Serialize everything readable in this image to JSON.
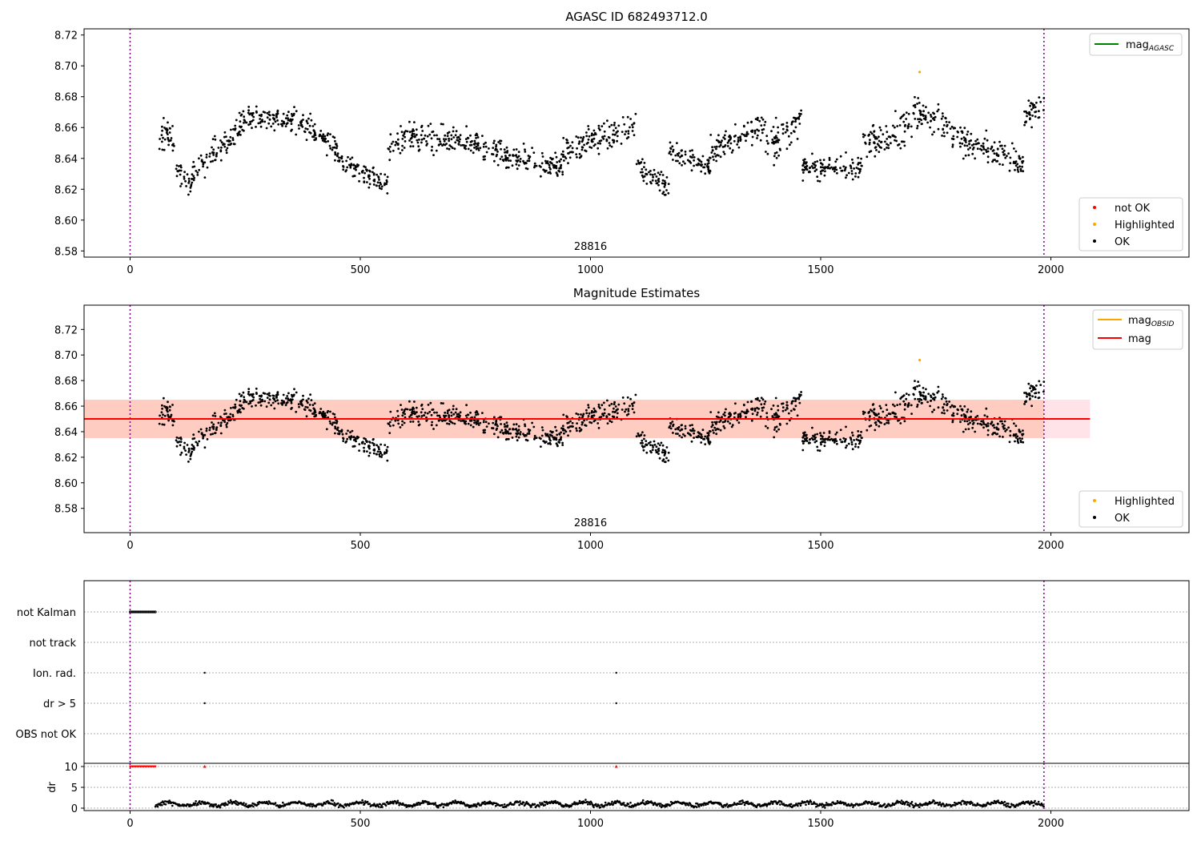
{
  "chart_data": [
    {
      "type": "scatter",
      "title": "AGASC ID 682493712.0",
      "xlim": [
        -100,
        2300
      ],
      "ylim": [
        8.576,
        8.724
      ],
      "x_ticks": [
        0,
        500,
        1000,
        1500,
        2000
      ],
      "y_ticks": [
        8.58,
        8.6,
        8.62,
        8.64,
        8.66,
        8.68,
        8.7,
        8.72
      ],
      "vlines": [
        0,
        1985
      ],
      "annotation": "28816",
      "legend_lines": [
        {
          "name": "mag",
          "sub": "AGASC",
          "color": "#008000"
        }
      ],
      "legend_points": [
        {
          "name": "not OK",
          "color": "#ff0000"
        },
        {
          "name": "Highlighted",
          "color": "#ffa500"
        },
        {
          "name": "OK",
          "color": "#000000"
        }
      ],
      "highlighted": [
        {
          "x": 1715,
          "y": 8.696
        }
      ],
      "ok_segments": [
        {
          "x": [
            60,
            100
          ],
          "y": [
            8.654,
            8.654
          ],
          "spread": 0.012
        },
        {
          "x": [
            100,
            135
          ],
          "y": [
            8.63,
            8.624
          ],
          "spread": 0.009
        },
        {
          "x": [
            135,
            240
          ],
          "y": [
            8.63,
            8.66
          ],
          "spread": 0.01
        },
        {
          "x": [
            240,
            360
          ],
          "y": [
            8.666,
            8.666
          ],
          "spread": 0.008
        },
        {
          "x": [
            360,
            450
          ],
          "y": [
            8.664,
            8.648
          ],
          "spread": 0.009
        },
        {
          "x": [
            450,
            560
          ],
          "y": [
            8.64,
            8.622
          ],
          "spread": 0.008
        },
        {
          "x": [
            560,
            620
          ],
          "y": [
            8.645,
            8.658
          ],
          "spread": 0.01
        },
        {
          "x": [
            620,
            760
          ],
          "y": [
            8.652,
            8.65
          ],
          "spread": 0.01
        },
        {
          "x": [
            760,
            940
          ],
          "y": [
            8.645,
            8.635
          ],
          "spread": 0.009
        },
        {
          "x": [
            940,
            1100
          ],
          "y": [
            8.645,
            8.662
          ],
          "spread": 0.01
        },
        {
          "x": [
            1100,
            1170
          ],
          "y": [
            8.636,
            8.62
          ],
          "spread": 0.01
        },
        {
          "x": [
            1170,
            1260
          ],
          "y": [
            8.645,
            8.635
          ],
          "spread": 0.008
        },
        {
          "x": [
            1260,
            1380
          ],
          "y": [
            8.645,
            8.662
          ],
          "spread": 0.01
        },
        {
          "x": [
            1380,
            1460
          ],
          "y": [
            8.645,
            8.665
          ],
          "spread": 0.012
        },
        {
          "x": [
            1460,
            1590
          ],
          "y": [
            8.634,
            8.634
          ],
          "spread": 0.008
        },
        {
          "x": [
            1590,
            1700
          ],
          "y": [
            8.65,
            8.662
          ],
          "spread": 0.012
        },
        {
          "x": [
            1700,
            1780
          ],
          "y": [
            8.67,
            8.662
          ],
          "spread": 0.012
        },
        {
          "x": [
            1780,
            1940
          ],
          "y": [
            8.655,
            8.636
          ],
          "spread": 0.01
        },
        {
          "x": [
            1940,
            1985
          ],
          "y": [
            8.665,
            8.675
          ],
          "spread": 0.01
        }
      ]
    },
    {
      "type": "scatter",
      "title": "Magnitude Estimates",
      "xlim": [
        -100,
        2300
      ],
      "ylim": [
        8.561,
        8.739
      ],
      "x_ticks": [
        0,
        500,
        1000,
        1500,
        2000
      ],
      "y_ticks": [
        8.58,
        8.6,
        8.62,
        8.64,
        8.66,
        8.68,
        8.7,
        8.72
      ],
      "vlines": [
        0,
        1985
      ],
      "annotation": "28816",
      "mag_line": {
        "value": 8.65,
        "x": [
          -100,
          2085
        ],
        "color": "#ff0000"
      },
      "band_outer": {
        "y": [
          8.635,
          8.665
        ],
        "x": [
          -100,
          2085
        ],
        "color": "#ffc0cb"
      },
      "band_inner": {
        "y": [
          8.635,
          8.665
        ],
        "x": [
          -100,
          1985
        ],
        "color": "#ffa07a"
      },
      "legend_lines": [
        {
          "name": "mag",
          "sub": "OBSID",
          "color": "#ffa500"
        },
        {
          "name": "mag",
          "sub": "",
          "color": "#ff0000"
        }
      ],
      "legend_points": [
        {
          "name": "Highlighted",
          "color": "#ffa500"
        },
        {
          "name": "OK",
          "color": "#000000"
        }
      ]
    },
    {
      "type": "scatter",
      "xlim": [
        -100,
        2300
      ],
      "flags": [
        "not Kalman",
        "not track",
        "Ion. rad.",
        "dr > 5",
        "OBS not OK"
      ],
      "flag_points": {
        "not Kalman": {
          "x_range": [
            0,
            55
          ]
        },
        "not track": {
          "x_range": []
        },
        "Ion. rad.": {
          "x": [
            162,
            1056
          ]
        },
        "dr > 5": {
          "x": [
            162,
            1056
          ]
        },
        "OBS not OK": {
          "x": []
        }
      },
      "vlines": [
        0,
        1985
      ],
      "dr": {
        "ylabel": "dr",
        "y_ticks": [
          0,
          5,
          10
        ],
        "x_ticks": [
          0,
          500,
          1000,
          1500,
          2000
        ],
        "capped_value": 10,
        "capped_x_range": [
          0,
          55
        ],
        "capped_x_extra": [
          162,
          1056
        ],
        "typical": 1.0
      }
    }
  ]
}
